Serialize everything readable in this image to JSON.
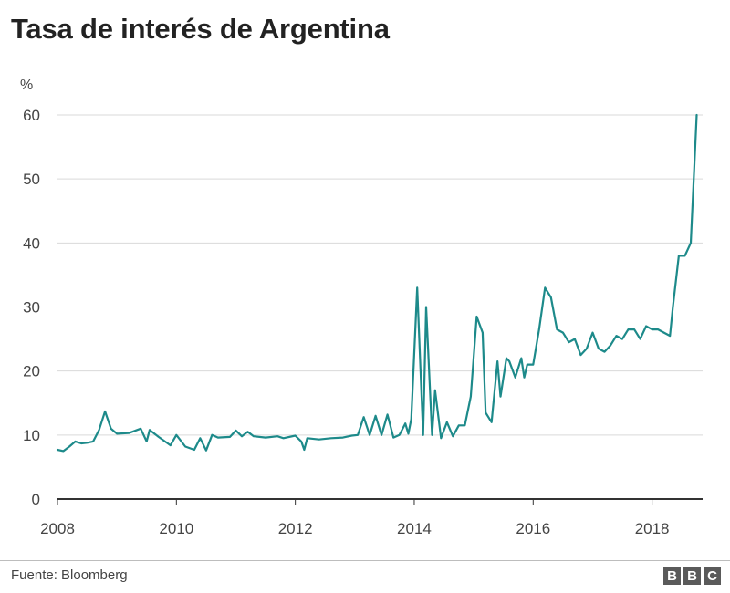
{
  "chart_data": {
    "type": "line",
    "title": "Tasa de interés de Argentina",
    "ylabel": "%",
    "xlabel": "",
    "ylim": [
      0,
      60
    ],
    "xlim": [
      2008.0,
      2018.85
    ],
    "yticks": [
      0,
      10,
      20,
      30,
      40,
      50,
      60
    ],
    "xticks": [
      2008,
      2010,
      2012,
      2014,
      2016,
      2018
    ],
    "grid": true,
    "line_color": "#1d8a8a",
    "series": [
      {
        "name": "Tasa de interés",
        "x": [
          2008.0,
          2008.1,
          2008.2,
          2008.3,
          2008.4,
          2008.5,
          2008.6,
          2008.7,
          2008.8,
          2008.9,
          2009.0,
          2009.2,
          2009.4,
          2009.5,
          2009.55,
          2009.7,
          2009.9,
          2010.0,
          2010.15,
          2010.3,
          2010.4,
          2010.5,
          2010.6,
          2010.7,
          2010.9,
          2011.0,
          2011.1,
          2011.2,
          2011.3,
          2011.5,
          2011.7,
          2011.8,
          2012.0,
          2012.1,
          2012.15,
          2012.2,
          2012.4,
          2012.6,
          2012.8,
          2012.95,
          2013.05,
          2013.15,
          2013.25,
          2013.35,
          2013.45,
          2013.55,
          2013.65,
          2013.75,
          2013.85,
          2013.9,
          2013.95,
          2014.05,
          2014.15,
          2014.2,
          2014.3,
          2014.35,
          2014.45,
          2014.55,
          2014.65,
          2014.75,
          2014.85,
          2014.95,
          2015.05,
          2015.15,
          2015.2,
          2015.3,
          2015.4,
          2015.45,
          2015.55,
          2015.6,
          2015.7,
          2015.8,
          2015.85,
          2015.9,
          2016.0,
          2016.1,
          2016.2,
          2016.3,
          2016.4,
          2016.5,
          2016.6,
          2016.7,
          2016.8,
          2016.9,
          2017.0,
          2017.1,
          2017.2,
          2017.3,
          2017.4,
          2017.5,
          2017.6,
          2017.7,
          2017.8,
          2017.9,
          2018.0,
          2018.1,
          2018.2,
          2018.3,
          2018.35,
          2018.45,
          2018.55,
          2018.65,
          2018.75
        ],
        "values": [
          7.7,
          7.5,
          8.2,
          9.0,
          8.7,
          8.8,
          9.0,
          10.8,
          13.7,
          11.0,
          10.2,
          10.3,
          11.0,
          9.0,
          10.8,
          9.7,
          8.4,
          10.0,
          8.2,
          7.7,
          9.5,
          7.6,
          10.0,
          9.6,
          9.7,
          10.7,
          9.8,
          10.5,
          9.8,
          9.6,
          9.8,
          9.5,
          9.9,
          9.0,
          7.7,
          9.5,
          9.3,
          9.5,
          9.6,
          9.9,
          10.0,
          12.8,
          10.0,
          13.0,
          10.0,
          13.2,
          9.6,
          10.0,
          11.8,
          10.2,
          12.5,
          33.0,
          10.0,
          30.0,
          10.0,
          17.0,
          9.5,
          12.0,
          9.8,
          11.5,
          11.5,
          16.0,
          28.5,
          26.0,
          13.5,
          12.0,
          21.5,
          16.0,
          22.0,
          21.5,
          19.0,
          22.0,
          19.0,
          21.0,
          21.0,
          26.5,
          33.0,
          31.5,
          26.5,
          26.0,
          24.5,
          25.0,
          22.5,
          23.5,
          26.0,
          23.5,
          23.0,
          24.0,
          25.5,
          25.0,
          26.5,
          26.5,
          25.0,
          27.0,
          26.5,
          26.5,
          26.0,
          25.5,
          30.0,
          38.0,
          38.0,
          40.0,
          60.0
        ]
      }
    ]
  },
  "footer": {
    "source": "Fuente: Bloomberg",
    "logo_letters": [
      "B",
      "B",
      "C"
    ]
  }
}
